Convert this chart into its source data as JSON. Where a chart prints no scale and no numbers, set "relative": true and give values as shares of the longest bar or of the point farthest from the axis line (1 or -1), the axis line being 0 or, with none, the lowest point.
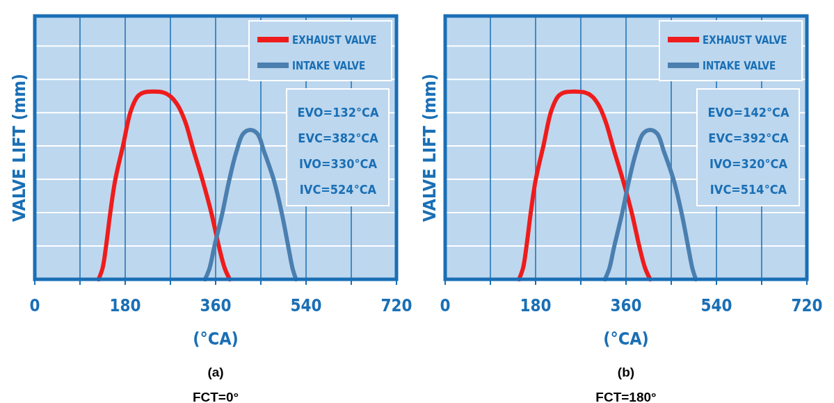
{
  "chart_data": [
    {
      "type": "line",
      "title": "(a)",
      "subtitle": "FCT=0°",
      "xlabel": "(°CA)",
      "ylabel": "VALVE LIFT (mm)",
      "relative": true,
      "xlim": [
        0,
        720
      ],
      "xticks": [
        0,
        {
          "value": 90,
          "label": null
        },
        180,
        {
          "value": 270,
          "label": null
        },
        360,
        {
          "value": 450,
          "label": null
        },
        540,
        {
          "value": 630,
          "label": null
        },
        720
      ],
      "grid": true,
      "legend": "top right",
      "annotations": [
        "EVO=132°CA",
        "EVC=382°CA",
        "IVO=330°CA",
        "IVC=524°CA"
      ],
      "series": [
        {
          "name": "EXHAUST VALVE",
          "color": "#ee1c1c",
          "x": [
            127,
            135,
            142,
            150,
            160,
            176,
            191,
            205,
            217,
            256,
            270,
            285,
            300,
            315,
            334,
            352,
            367,
            378,
            388
          ],
          "values": [
            0,
            0.06,
            0.18,
            0.35,
            0.53,
            0.72,
            0.9,
            0.98,
            1,
            1,
            0.98,
            0.93,
            0.84,
            0.7,
            0.53,
            0.35,
            0.17,
            0.06,
            0
          ]
        },
        {
          "name": "INTAKE VALVE",
          "color": "#4a7fb0",
          "x": [
            339,
            348,
            357,
            373,
            387,
            401,
            415,
            429,
            443,
            457,
            476,
            492,
            505,
            513,
            520
          ],
          "values": [
            0,
            0.06,
            0.17,
            0.35,
            0.53,
            0.68,
            0.78,
            0.8,
            0.78,
            0.68,
            0.53,
            0.35,
            0.17,
            0.06,
            0
          ]
        }
      ]
    },
    {
      "type": "line",
      "title": "(b)",
      "subtitle": "FCT=180°",
      "xlabel": "(°CA)",
      "ylabel": "VALVE LIFT (mm)",
      "relative": true,
      "xlim": [
        0,
        720
      ],
      "xticks": [
        0,
        {
          "value": 90,
          "label": null
        },
        180,
        {
          "value": 270,
          "label": null
        },
        360,
        {
          "value": 450,
          "label": null
        },
        540,
        {
          "value": 630,
          "label": null
        },
        720
      ],
      "grid": true,
      "legend": "top right",
      "annotations": [
        "EVO=142°CA",
        "EVC=392°CA",
        "IVO=320°CA",
        "IVC=514°CA"
      ],
      "series": [
        {
          "name": "EXHAUST VALVE",
          "color": "#ee1c1c",
          "x": [
            147,
            155,
            162,
            170,
            180,
            196,
            211,
            225,
            237,
            278,
            292,
            306,
            320,
            335,
            354,
            372,
            387,
            398,
            408
          ],
          "values": [
            0,
            0.06,
            0.18,
            0.35,
            0.53,
            0.72,
            0.9,
            0.98,
            1,
            1,
            0.98,
            0.93,
            0.84,
            0.7,
            0.53,
            0.35,
            0.17,
            0.06,
            0
          ]
        },
        {
          "name": "INTAKE VALVE",
          "color": "#4a7fb0",
          "x": [
            318,
            327,
            336,
            352,
            366,
            380,
            394,
            408,
            422,
            436,
            455,
            471,
            484,
            492,
            499
          ],
          "values": [
            0,
            0.06,
            0.17,
            0.35,
            0.53,
            0.68,
            0.78,
            0.8,
            0.78,
            0.68,
            0.53,
            0.35,
            0.17,
            0.06,
            0
          ]
        }
      ]
    }
  ]
}
